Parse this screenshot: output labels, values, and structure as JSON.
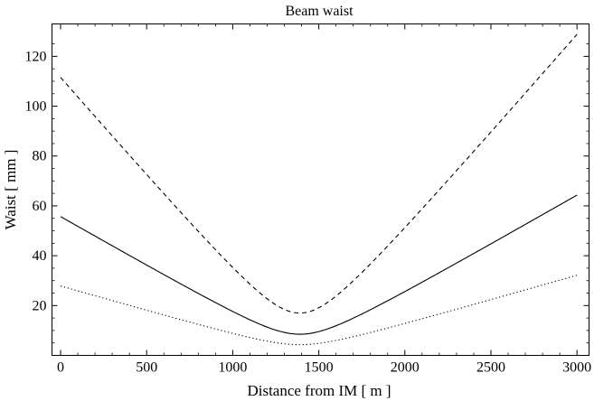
{
  "chart_data": {
    "type": "line",
    "title": "Beam waist",
    "xlabel": "Distance from IM [ m ]",
    "ylabel": "Waist [ mm ]",
    "xlim": [
      -50,
      3070
    ],
    "ylim": [
      0,
      133
    ],
    "xticks": [
      0,
      500,
      1000,
      1500,
      2000,
      2500,
      3000
    ],
    "yticks": [
      20,
      40,
      60,
      80,
      100,
      120
    ],
    "xtick_labels": [
      "0",
      "500",
      "1000",
      "1500",
      "2000",
      "2500",
      "3000"
    ],
    "ytick_labels": [
      "20",
      "40",
      "60",
      "80",
      "100",
      "120"
    ],
    "grid": false,
    "legend": "none",
    "series": [
      {
        "style": "dashed",
        "color": "#000000",
        "model": {
          "x0": 1390,
          "w0": 17,
          "slope": 0.0793
        },
        "x": [
          0,
          250,
          500,
          750,
          1000,
          1250,
          1390,
          1500,
          1750,
          2000,
          2250,
          2500,
          2750,
          3000
        ],
        "values": [
          112,
          92,
          72.5,
          52.5,
          33,
          17.2,
          17,
          18,
          30,
          50,
          69,
          89,
          109,
          130
        ]
      },
      {
        "style": "solid",
        "color": "#000000",
        "model": {
          "x0": 1390,
          "w0": 8.5,
          "slope": 0.0396
        },
        "x": [
          0,
          250,
          500,
          750,
          1000,
          1250,
          1390,
          1500,
          1750,
          2000,
          2250,
          2500,
          2750,
          3000
        ],
        "values": [
          56,
          46,
          36,
          26,
          16.5,
          9.5,
          8.5,
          9.2,
          16.5,
          25.5,
          35,
          45,
          55,
          65
        ]
      },
      {
        "style": "dotted",
        "color": "#000000",
        "model": {
          "x0": 1390,
          "w0": 4.3,
          "slope": 0.0198
        },
        "x": [
          0,
          250,
          500,
          750,
          1000,
          1250,
          1390,
          1500,
          1750,
          2000,
          2250,
          2500,
          2750,
          3000
        ],
        "values": [
          28,
          23,
          18,
          13,
          8.5,
          5,
          4.3,
          4.7,
          8.3,
          12.8,
          17.5,
          22.5,
          27.5,
          32.5
        ]
      }
    ]
  }
}
